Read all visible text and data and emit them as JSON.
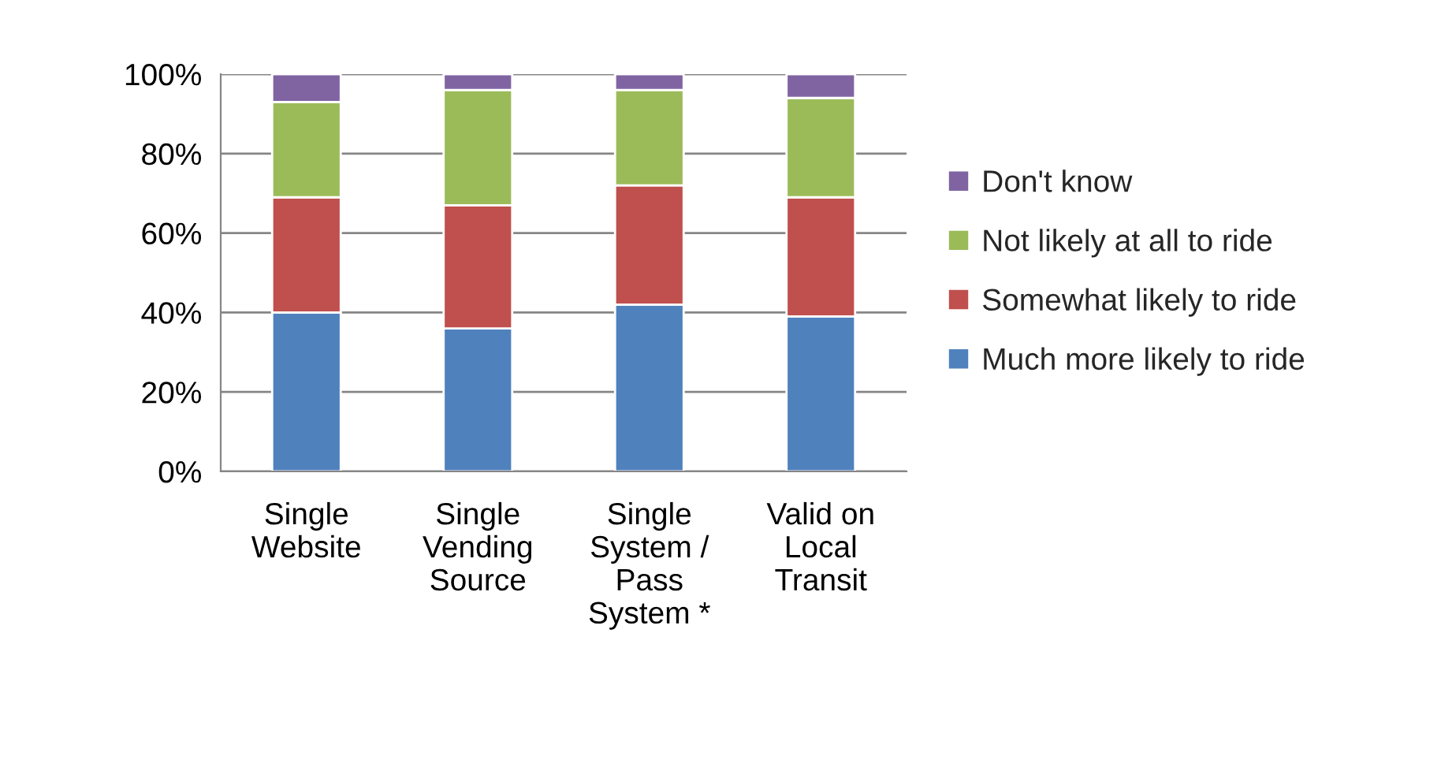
{
  "chart_data": {
    "type": "bar",
    "stacked": true,
    "categories": [
      "Single\nWebsite",
      "Single\nVending\nSource",
      "Single\nSystem /\nPass\nSystem *",
      "Valid on\nLocal\nTransit"
    ],
    "series": [
      {
        "name": "Much more likely to ride",
        "color": "#4f81bd",
        "values": [
          40,
          36,
          42,
          39
        ]
      },
      {
        "name": "Somewhat likely to ride",
        "color": "#c0504d",
        "values": [
          29,
          31,
          30,
          30
        ]
      },
      {
        "name": "Not likely at all to ride",
        "color": "#9bbb59",
        "values": [
          24,
          29,
          24,
          25
        ]
      },
      {
        "name": "Don't know",
        "color": "#8064a2",
        "values": [
          7,
          4,
          4,
          6
        ]
      }
    ],
    "ylim": [
      0,
      100
    ],
    "yticks": [
      {
        "value": 0,
        "label": "0%"
      },
      {
        "value": 20,
        "label": "20%"
      },
      {
        "value": 40,
        "label": "40%"
      },
      {
        "value": 60,
        "label": "60%"
      },
      {
        "value": 80,
        "label": "80%"
      },
      {
        "value": 100,
        "label": "100%"
      }
    ],
    "grid": "y",
    "legend": "right"
  }
}
